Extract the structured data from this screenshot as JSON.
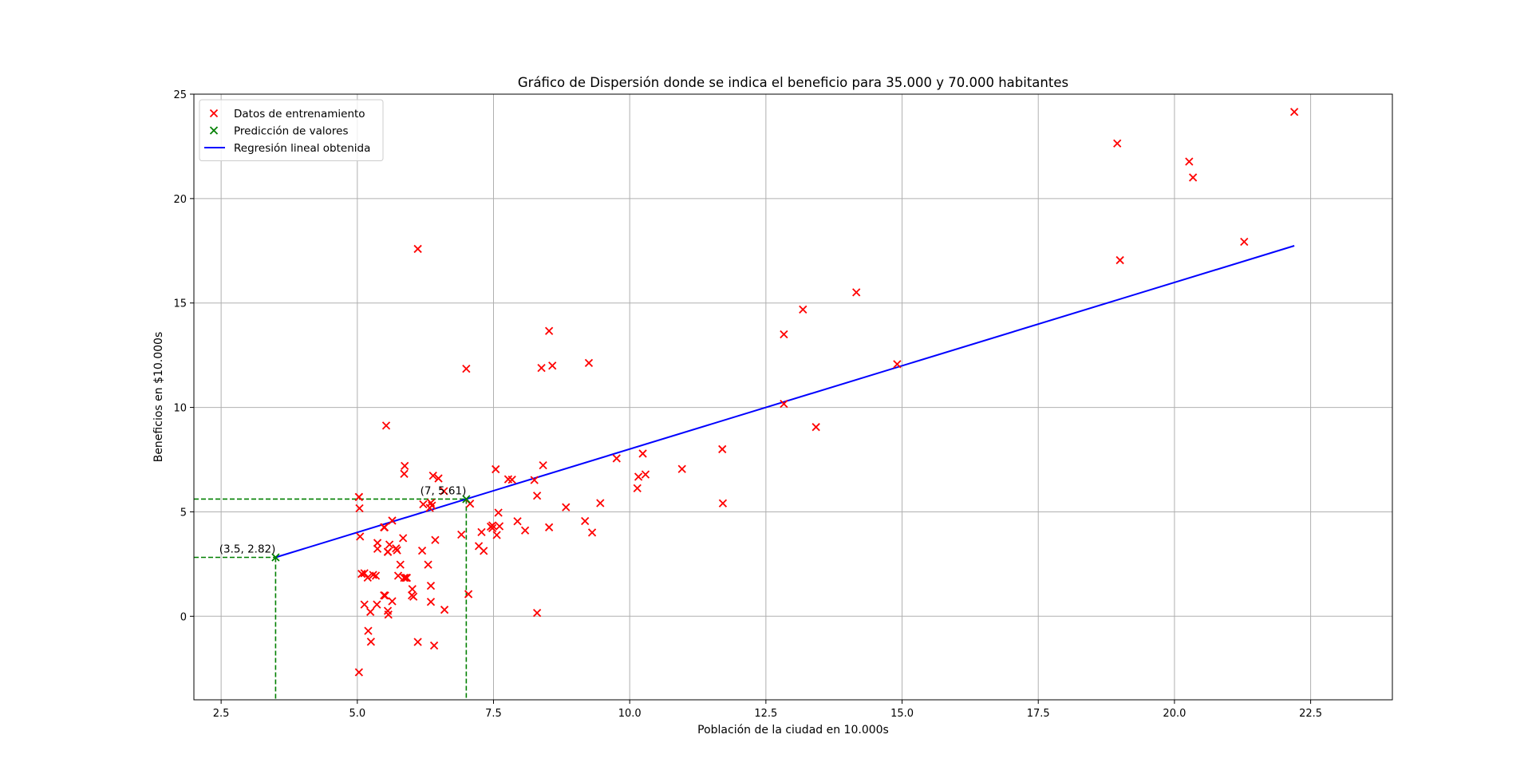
{
  "chart_data": {
    "type": "scatter",
    "title": "Gráfico de Dispersión donde se indica el beneficio para 35.000 y 70.000 habitantes",
    "xlabel": "Población de la ciudad en 10.000s",
    "ylabel": "Beneficios en $10.000s",
    "xlim": [
      2.0,
      24.0
    ],
    "ylim": [
      -4.0,
      25.0
    ],
    "xticks": [
      2.5,
      5.0,
      7.5,
      10.0,
      12.5,
      15.0,
      17.5,
      20.0,
      22.5
    ],
    "xtick_labels": [
      "2.5",
      "5.0",
      "7.5",
      "10.0",
      "12.5",
      "15.0",
      "17.5",
      "20.0",
      "22.5"
    ],
    "yticks": [
      0,
      5,
      10,
      15,
      20,
      25
    ],
    "ytick_labels": [
      "0",
      "5",
      "10",
      "15",
      "20",
      "25"
    ],
    "grid": true,
    "legend_position": "upper-left",
    "colors": {
      "training": "#ff0000",
      "prediction": "#008000",
      "regression": "#0000ff",
      "grid": "#b0b0b0"
    },
    "series": [
      {
        "name": "Datos de entrenamiento",
        "kind": "scatter",
        "marker": "x",
        "color": "#ff0000",
        "points": [
          [
            6.11,
            17.59
          ],
          [
            5.53,
            9.13
          ],
          [
            8.52,
            13.66
          ],
          [
            7.0,
            11.85
          ],
          [
            5.86,
            6.82
          ],
          [
            8.38,
            11.89
          ],
          [
            7.48,
            4.35
          ],
          [
            8.58,
            12.0
          ],
          [
            6.49,
            6.6
          ],
          [
            5.05,
            3.82
          ],
          [
            5.71,
            3.25
          ],
          [
            14.16,
            15.51
          ],
          [
            5.73,
            3.16
          ],
          [
            8.41,
            7.23
          ],
          [
            5.64,
            0.72
          ],
          [
            5.37,
            3.51
          ],
          [
            6.37,
            5.3
          ],
          [
            5.13,
            0.56
          ],
          [
            6.43,
            3.65
          ],
          [
            7.07,
            5.39
          ],
          [
            6.19,
            3.14
          ],
          [
            20.27,
            21.77
          ],
          [
            5.49,
            4.26
          ],
          [
            6.33,
            5.19
          ],
          [
            5.56,
            3.08
          ],
          [
            18.95,
            22.64
          ],
          [
            12.83,
            13.5
          ],
          [
            10.96,
            7.05
          ],
          [
            13.18,
            14.69
          ],
          [
            22.2,
            24.15
          ],
          [
            5.25,
            -1.22
          ],
          [
            6.59,
            5.99
          ],
          [
            9.25,
            12.13
          ],
          [
            5.19,
            1.85
          ],
          [
            7.84,
            6.54
          ],
          [
            9.18,
            4.56
          ],
          [
            6.39,
            6.73
          ],
          [
            6.11,
            -1.23
          ],
          [
            5.84,
            3.74
          ],
          [
            10.16,
            6.68
          ],
          [
            5.86,
            1.84
          ],
          [
            5.56,
            0.26
          ],
          [
            5.57,
            0.08
          ],
          [
            7.32,
            3.13
          ],
          [
            5.37,
            3.23
          ],
          [
            5.13,
            2.06
          ],
          [
            5.91,
            1.84
          ],
          [
            6.6,
            0.31
          ],
          [
            5.36,
            0.56
          ],
          [
            5.08,
            2.03
          ],
          [
            5.03,
            5.71
          ],
          [
            5.29,
            1.98
          ],
          [
            5.03,
            5.71
          ],
          [
            5.89,
            1.84
          ],
          [
            7.45,
            4.29
          ],
          [
            5.75,
            1.94
          ],
          [
            8.83,
            5.22
          ],
          [
            11.7,
            8.0
          ],
          [
            7.94,
            4.55
          ],
          [
            6.91,
            3.91
          ],
          [
            10.24,
            7.79
          ],
          [
            5.79,
            2.47
          ],
          [
            6.35,
            5.43
          ],
          [
            7.23,
            3.36
          ],
          [
            8.3,
            5.77
          ],
          [
            7.04,
            1.06
          ],
          [
            5.64,
            4.58
          ],
          [
            6.01,
            1.3
          ],
          [
            5.51,
            0.99
          ],
          [
            6.21,
            5.36
          ],
          [
            5.34,
            1.94
          ],
          [
            5.24,
            0.21
          ],
          [
            6.3,
            2.47
          ],
          [
            9.31,
            4.01
          ],
          [
            13.42,
            9.06
          ],
          [
            21.28,
            17.93
          ],
          [
            19.0,
            17.05
          ],
          [
            7.54,
            7.04
          ],
          [
            5.49,
            1.0
          ],
          [
            7.59,
            4.96
          ],
          [
            5.03,
            -2.68
          ],
          [
            20.34,
            21.01
          ],
          [
            10.14,
            6.13
          ],
          [
            7.48,
            4.22
          ],
          [
            5.2,
            -0.7
          ],
          [
            5.04,
            5.17
          ],
          [
            5.59,
            3.43
          ],
          [
            9.46,
            5.42
          ],
          [
            12.83,
            10.17
          ],
          [
            11.71,
            5.41
          ],
          [
            7.61,
            4.31
          ],
          [
            7.77,
            6.56
          ],
          [
            8.08,
            4.11
          ],
          [
            8.25,
            6.52
          ],
          [
            8.3,
            0.16
          ],
          [
            6.35,
            0.69
          ],
          [
            9.76,
            7.56
          ],
          [
            10.29,
            6.79
          ],
          [
            14.91,
            12.07
          ],
          [
            6.35,
            1.46
          ],
          [
            6.03,
            0.94
          ],
          [
            5.5,
            4.26
          ],
          [
            5.56,
            3.09
          ],
          [
            5.87,
            7.2
          ],
          [
            7.56,
            3.89
          ],
          [
            7.28,
            4.03
          ],
          [
            8.52,
            4.26
          ],
          [
            6.0,
            1.0
          ],
          [
            6.41,
            -1.4
          ]
        ]
      },
      {
        "name": "Predicción de valores",
        "kind": "scatter",
        "marker": "x",
        "color": "#008000",
        "points": [
          [
            3.5,
            2.82
          ],
          [
            7.0,
            5.61
          ]
        ]
      },
      {
        "name": "Regresión lineal obtenida",
        "kind": "line",
        "color": "#0000ff",
        "points": [
          [
            3.5,
            2.82
          ],
          [
            22.2,
            17.74
          ]
        ]
      }
    ],
    "guides": [
      {
        "x": 3.5,
        "y": 2.82,
        "style": "dashed",
        "color": "#008000"
      },
      {
        "x": 7.0,
        "y": 5.61,
        "style": "dashed",
        "color": "#008000"
      }
    ],
    "annotations": [
      {
        "text": "(3.5, 2.82)",
        "x": 3.5,
        "y": 2.82
      },
      {
        "text": "(7, 5.61)",
        "x": 7.0,
        "y": 5.61
      }
    ]
  }
}
